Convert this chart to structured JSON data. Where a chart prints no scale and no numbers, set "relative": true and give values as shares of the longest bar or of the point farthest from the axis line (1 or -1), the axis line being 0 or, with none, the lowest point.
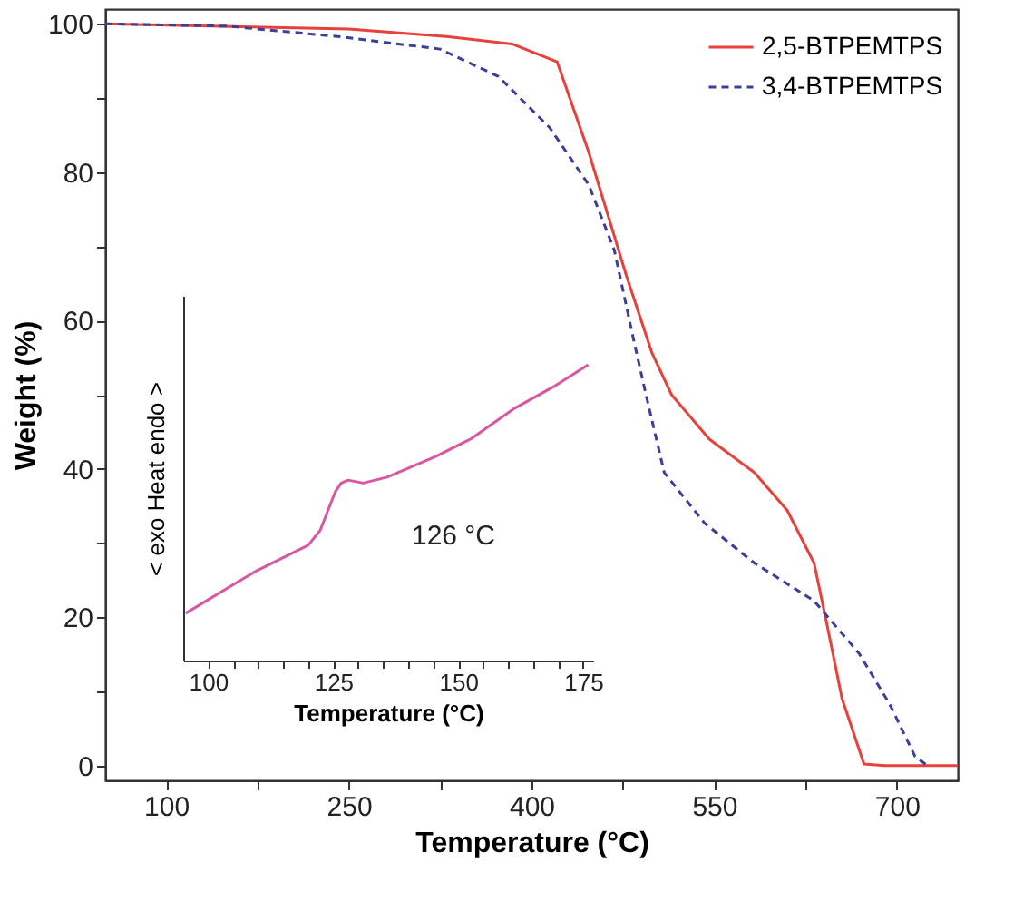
{
  "chart_data": [
    {
      "type": "line",
      "xlabel": "Temperature (°C)",
      "ylabel": "Weight (%)",
      "xlim": [
        50,
        750
      ],
      "ylim": [
        -2,
        102
      ],
      "xticks": [
        100,
        {
          "value": 175,
          "label": null
        },
        250,
        {
          "value": 325,
          "label": null
        },
        400,
        {
          "value": 475,
          "label": null
        },
        550,
        {
          "value": 625,
          "label": null
        },
        700
      ],
      "yticks": [
        0,
        {
          "value": 10,
          "label": null
        },
        20,
        {
          "value": 30,
          "label": null
        },
        40,
        {
          "value": 50,
          "label": null
        },
        60,
        {
          "value": 70,
          "label": null
        },
        80,
        {
          "value": 90,
          "label": null
        },
        100
      ],
      "grid": false,
      "legend": "top right",
      "marker": "none",
      "series": [
        {
          "name": "2,5-BTPEMTPS",
          "color": "#e8403a",
          "line_style": "solid",
          "x": [
            50,
            250,
            330,
            384,
            421,
            447,
            478,
            499,
            515,
            546,
            583,
            610,
            632,
            642,
            655,
            673,
            690,
            750
          ],
          "values": [
            100,
            99.3,
            98.3,
            97.3,
            94.9,
            82.7,
            66,
            55.6,
            50,
            44,
            39.5,
            34.4,
            27.3,
            19.5,
            9,
            0.2,
            0,
            0
          ]
        },
        {
          "name": "3,4-BTPEMTPS",
          "color": "#3a3f9a",
          "line_style": "dashed",
          "x": [
            50,
            150,
            241,
            325,
            373,
            415,
            447,
            468,
            484,
            494,
            509,
            542,
            583,
            632,
            669,
            694,
            715,
            725
          ],
          "values": [
            100,
            99.7,
            98.3,
            96.6,
            92.9,
            86,
            78.3,
            69.5,
            57.3,
            50,
            39.5,
            32.7,
            27.3,
            22.2,
            15.1,
            8.3,
            1.2,
            0
          ]
        }
      ]
    },
    {
      "type": "line",
      "relative": true,
      "xlabel": "Temperature (°C)",
      "ylabel": "< exo    Heat    endo >",
      "xlim": [
        95,
        177
      ],
      "xticks": [
        100,
        {
          "value": 105,
          "label": null
        },
        {
          "value": 110,
          "label": null
        },
        {
          "value": 115,
          "label": null
        },
        {
          "value": 120,
          "label": null
        },
        125,
        {
          "value": 130,
          "label": null
        },
        {
          "value": 135,
          "label": null
        },
        {
          "value": 140,
          "label": null
        },
        {
          "value": 145,
          "label": null
        },
        150,
        {
          "value": 155,
          "label": null
        },
        {
          "value": 160,
          "label": null
        },
        {
          "value": 165,
          "label": null
        },
        {
          "value": 170,
          "label": null
        },
        175
      ],
      "tick_labels": "x",
      "grid": false,
      "marker": "none",
      "annotations": [
        "126 °C"
      ],
      "series": [
        {
          "color": "#d9579e",
          "line_style": "solid",
          "x": [
            95.5,
            109.3,
            120,
            122.4,
            125.4,
            126.6,
            128,
            131,
            135.8,
            145.5,
            152.6,
            161,
            169.5,
            176
          ],
          "values": [
            0.16,
            0.3,
            0.39,
            0.44,
            0.57,
            0.6,
            0.61,
            0.6,
            0.62,
            0.69,
            0.75,
            0.85,
            0.93,
            1.0
          ]
        }
      ]
    }
  ]
}
